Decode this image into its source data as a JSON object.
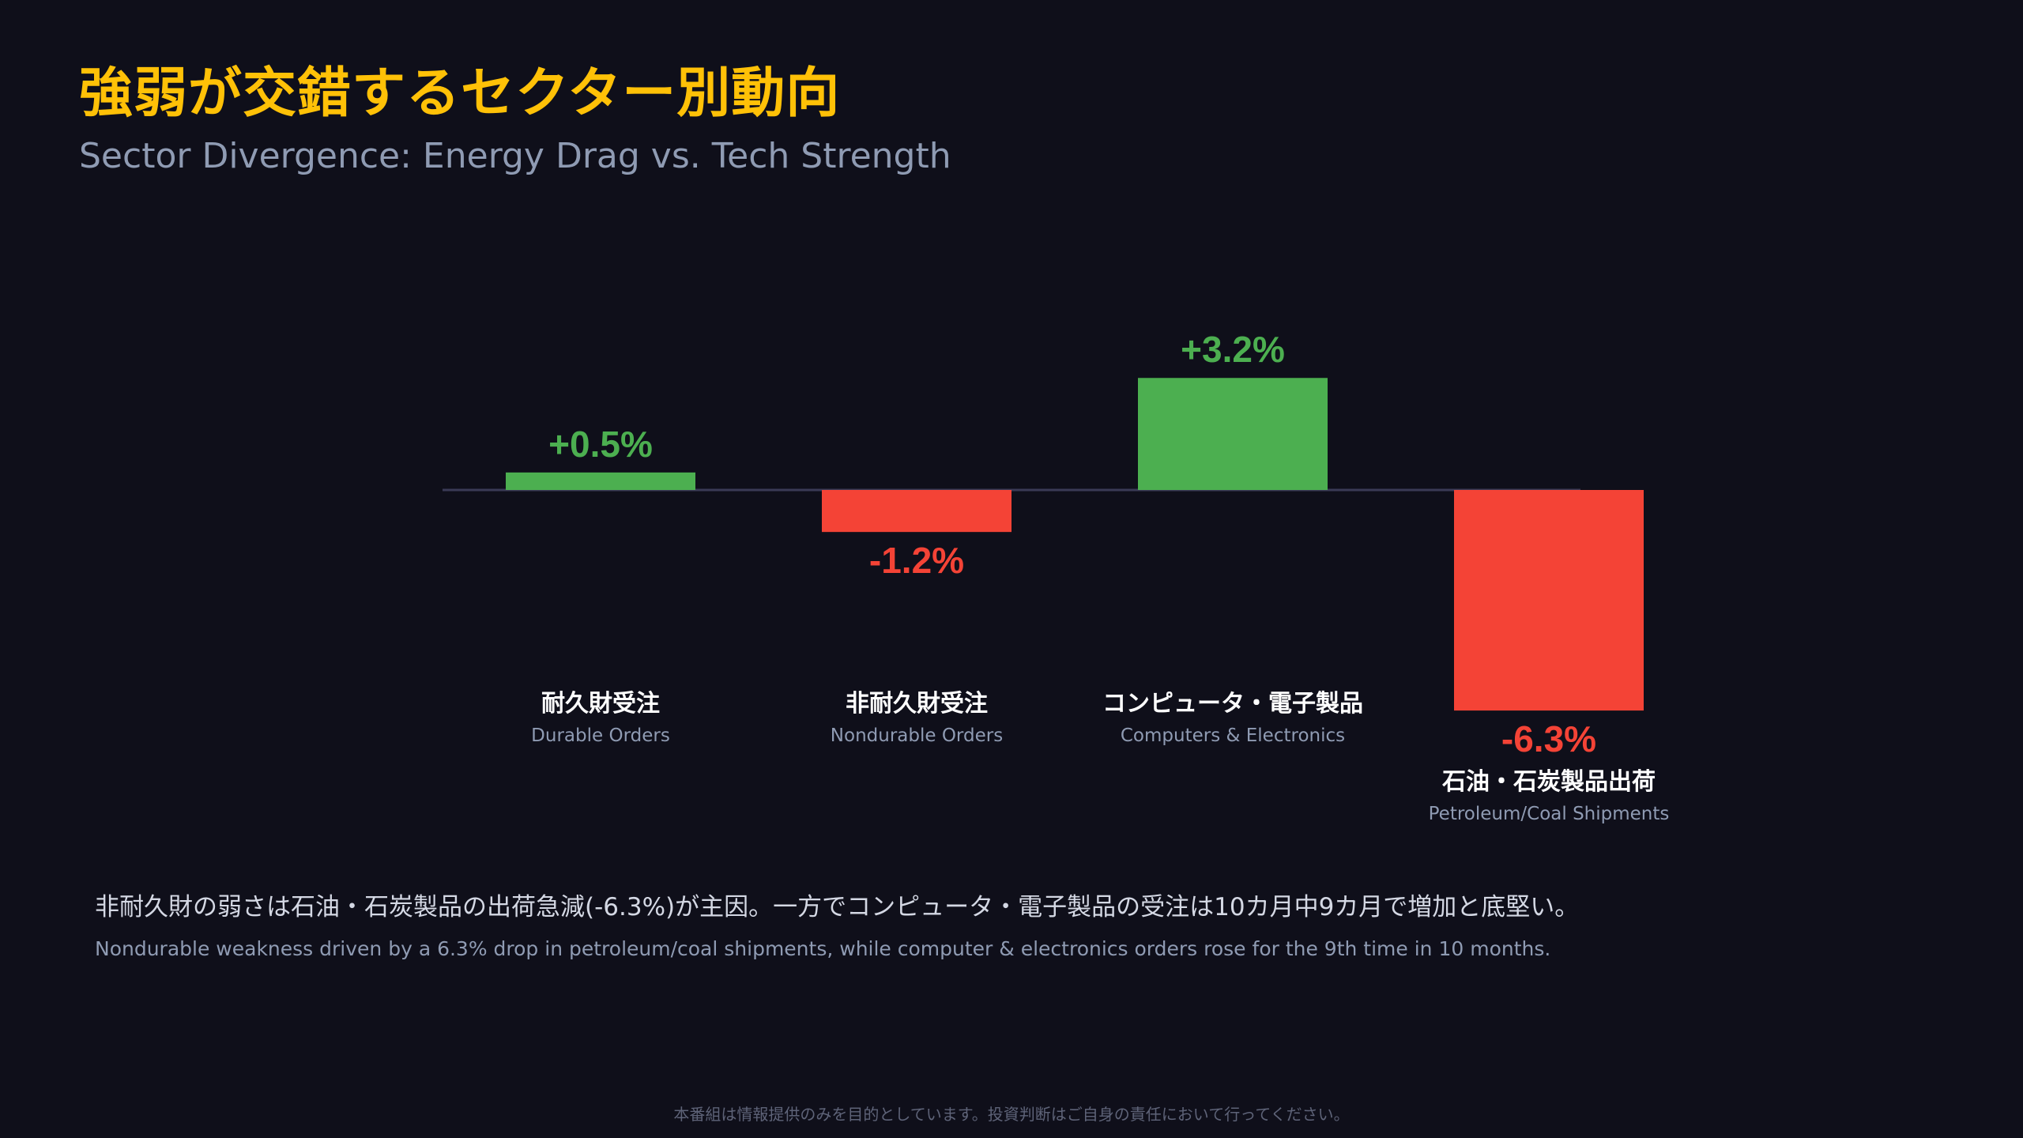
{
  "header": {
    "title": "強弱が交錯するセクター別動向",
    "subtitle": "Sector Divergence: Energy Drag vs. Tech Strength"
  },
  "chart_data": {
    "type": "bar",
    "categories": [
      {
        "ja": "耐久財受注",
        "en": "Durable Orders"
      },
      {
        "ja": "非耐久財受注",
        "en": "Nondurable Orders"
      },
      {
        "ja": "コンピュータ・電子製品",
        "en": "Computers & Electronics"
      },
      {
        "ja": "石油・石炭製品出荷",
        "en": "Petroleum/Coal Shipments"
      }
    ],
    "values": [
      0.5,
      -1.2,
      3.2,
      -6.3
    ],
    "value_labels": [
      "+0.5%",
      "-1.2%",
      "+3.2%",
      "-6.3%"
    ],
    "unit": "%",
    "colors": {
      "positive": "#4caf50",
      "negative": "#f44336",
      "baseline": "#3a3a55"
    }
  },
  "note": {
    "ja": "非耐久財の弱さは石油・石炭製品の出荷急減(-6.3%)が主因。一方でコンピュータ・電子製品の受注は10カ月中9カ月で増加と底堅い。",
    "en": "Nondurable weakness driven by a 6.3% drop in petroleum/coal shipments, while computer & electronics orders rose for the 9th time in 10 months."
  },
  "footer": {
    "disclaimer": "本番組は情報提供のみを目的としています。投資判断はご自身の責任において行ってください。"
  }
}
